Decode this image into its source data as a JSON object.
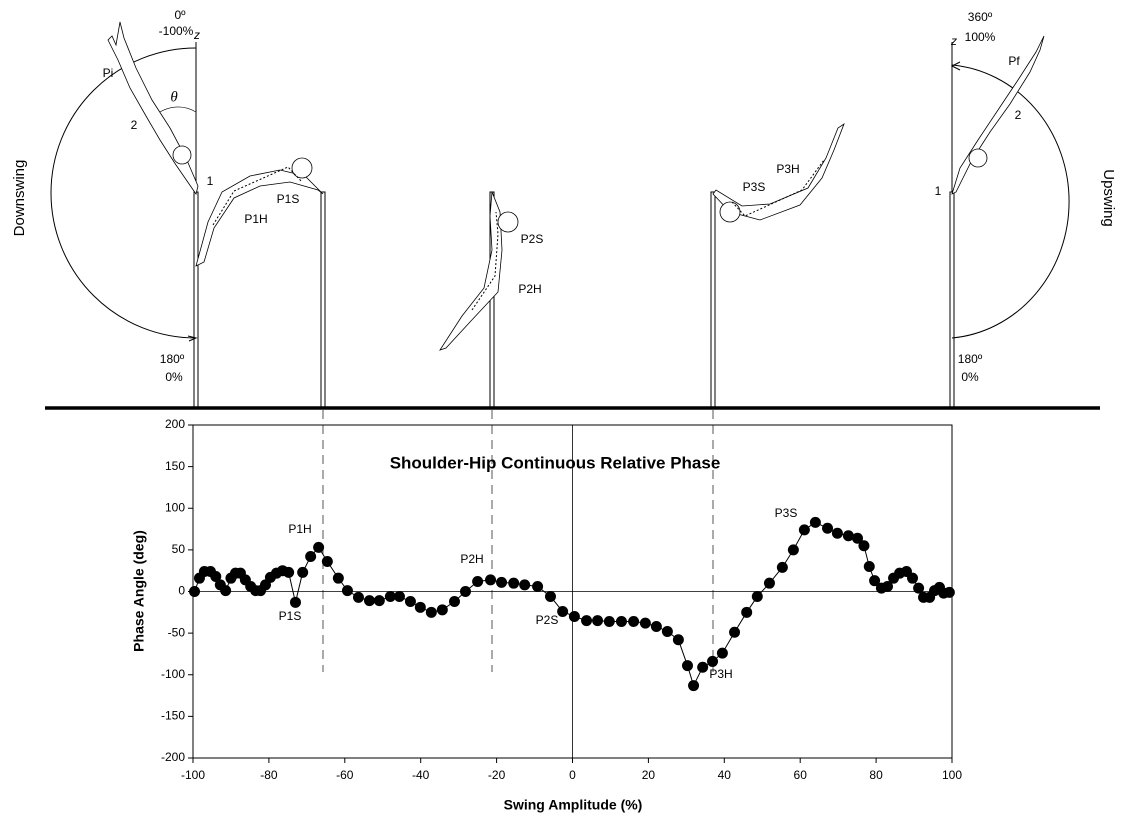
{
  "diagram": {
    "left_side": "Downswing",
    "right_side": "Upswing",
    "labels": [
      "0º",
      "-100%",
      "z",
      "Pi",
      "θ",
      "2",
      "1",
      "180º",
      "0%",
      "P1H",
      "P1S",
      "P2S",
      "P2H",
      "P3S",
      "P3H",
      "360º",
      "100%",
      "z",
      "Pf",
      "2",
      "1",
      "180º",
      "0%"
    ]
  },
  "chart_data": {
    "type": "line",
    "title": "Shoulder-Hip Continuous Relative Phase",
    "x_label": "Swing Amplitude (%)",
    "y_label": "Phase Angle (deg)",
    "color": "#000000",
    "markers": true,
    "x": [
      -99.6,
      -98.3,
      -97,
      -95.4,
      -94,
      -92.8,
      -91.4,
      -90,
      -88.8,
      -87.5,
      -86.2,
      -84.8,
      -83.5,
      -82.2,
      -80.9,
      -79.6,
      -78,
      -76.4,
      -74.8,
      -73,
      -71.1,
      -69,
      -66.9,
      -64.6,
      -61.7,
      -59.3,
      -56.4,
      -53.5,
      -50.9,
      -48,
      -45.6,
      -42.7,
      -40.1,
      -37.2,
      -34.3,
      -31.1,
      -28.2,
      -25,
      -21.6,
      -18.7,
      -15.5,
      -12.6,
      -9.2,
      -5.8,
      -2.6,
      0.5,
      3.7,
      6.6,
      9.7,
      12.9,
      16.1,
      19.2,
      22.1,
      25,
      27.9,
      30.3,
      31.9,
      34.3,
      36.9,
      39.5,
      42.7,
      45.9,
      48.7,
      51.9,
      55.3,
      58.2,
      61.1,
      64,
      67.2,
      69.8,
      72.7,
      75.1,
      76.8,
      78.2,
      79.6,
      81.4,
      83,
      84.6,
      86.2,
      88,
      89.6,
      91.2,
      92.5,
      94.1,
      95.4,
      96.7,
      97.8,
      99.3
    ],
    "values": [
      0,
      16,
      24,
      24,
      18,
      8,
      1,
      16,
      22,
      22,
      14,
      6,
      1,
      1,
      8,
      17,
      22,
      25,
      23,
      -13,
      23,
      42,
      53,
      36,
      16,
      1,
      -7,
      -11,
      -11,
      -6,
      -6,
      -12,
      -19,
      -25,
      -22,
      -12,
      0,
      12,
      14,
      11,
      10,
      8,
      6,
      -6,
      -24,
      -30,
      -35,
      -35,
      -36,
      -36,
      -36,
      -38,
      -42,
      -48,
      -58,
      -89,
      -113,
      -91,
      -84,
      -74,
      -49,
      -25,
      -6,
      10,
      29,
      50,
      74,
      83,
      76,
      70,
      67,
      64,
      55,
      30,
      13,
      4,
      6,
      16,
      22,
      24,
      16,
      4,
      -7,
      -7,
      1,
      5,
      -2,
      -1
    ],
    "annotations": [
      "P1H",
      "P1S",
      "P2H",
      "P2S",
      "P3S",
      "P3H"
    ],
    "xlim": [
      -100,
      100
    ],
    "xticks": [
      -100,
      -80,
      -60,
      -40,
      -20,
      0,
      20,
      40,
      60,
      80,
      100
    ],
    "ylim": [
      -200,
      200
    ],
    "yticks": [
      -200,
      -150,
      -100,
      -50,
      0,
      50,
      100,
      150,
      200
    ],
    "zero_lines": true
  }
}
